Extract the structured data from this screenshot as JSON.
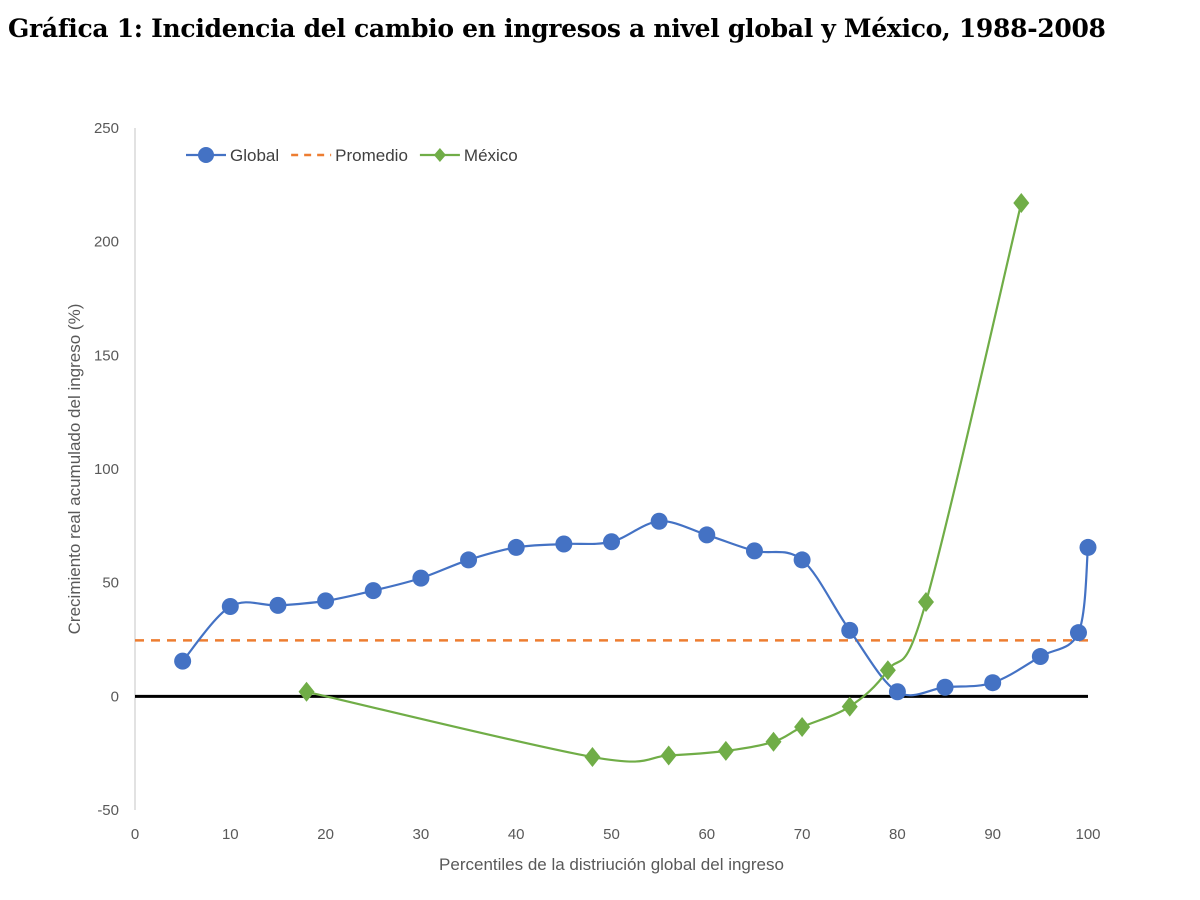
{
  "title": "Gráfica 1: Incidencia del cambio en ingresos a nivel global y México, 1988-2008",
  "chart_data": {
    "type": "line",
    "title": "Gráfica 1: Incidencia del cambio en ingresos a nivel global y México, 1988-2008",
    "xlabel": "Percentiles de la distriución global del ingreso",
    "ylabel": "Crecimiento real acumulado del ingreso (%)",
    "xlim": [
      0,
      100
    ],
    "ylim": [
      -50,
      250
    ],
    "xticks": [
      0,
      10,
      20,
      30,
      40,
      50,
      60,
      70,
      80,
      90,
      100
    ],
    "yticks": [
      -50,
      0,
      50,
      100,
      150,
      200,
      250
    ],
    "grid": false,
    "legend_position": "top-left",
    "series": [
      {
        "name": "Global",
        "color": "#4472C4",
        "marker": "circle",
        "smooth": true,
        "x": [
          5,
          10,
          15,
          20,
          25,
          30,
          35,
          40,
          45,
          50,
          55,
          60,
          65,
          70,
          75,
          80,
          85,
          90,
          95,
          99,
          100
        ],
        "y": [
          15.5,
          39.5,
          40,
          42,
          46.5,
          52,
          60,
          65.5,
          67,
          68,
          77,
          71,
          64,
          60,
          29,
          2,
          4,
          6,
          17.5,
          28,
          65.5
        ]
      },
      {
        "name": "Promedio",
        "color": "#ED7D31",
        "dashed": true,
        "x": [
          0,
          100
        ],
        "y": [
          24.6,
          24.6
        ]
      },
      {
        "name": "México",
        "color": "#70AD47",
        "marker": "diamond",
        "smooth": true,
        "x": [
          18,
          48,
          56,
          62,
          67,
          70,
          75,
          79,
          83,
          93
        ],
        "y": [
          2,
          -26.7,
          -26,
          -24,
          -20,
          -13.5,
          -4.5,
          11.5,
          41.5,
          217
        ]
      }
    ],
    "reference_line": {
      "y": 0,
      "color": "#000000"
    }
  }
}
